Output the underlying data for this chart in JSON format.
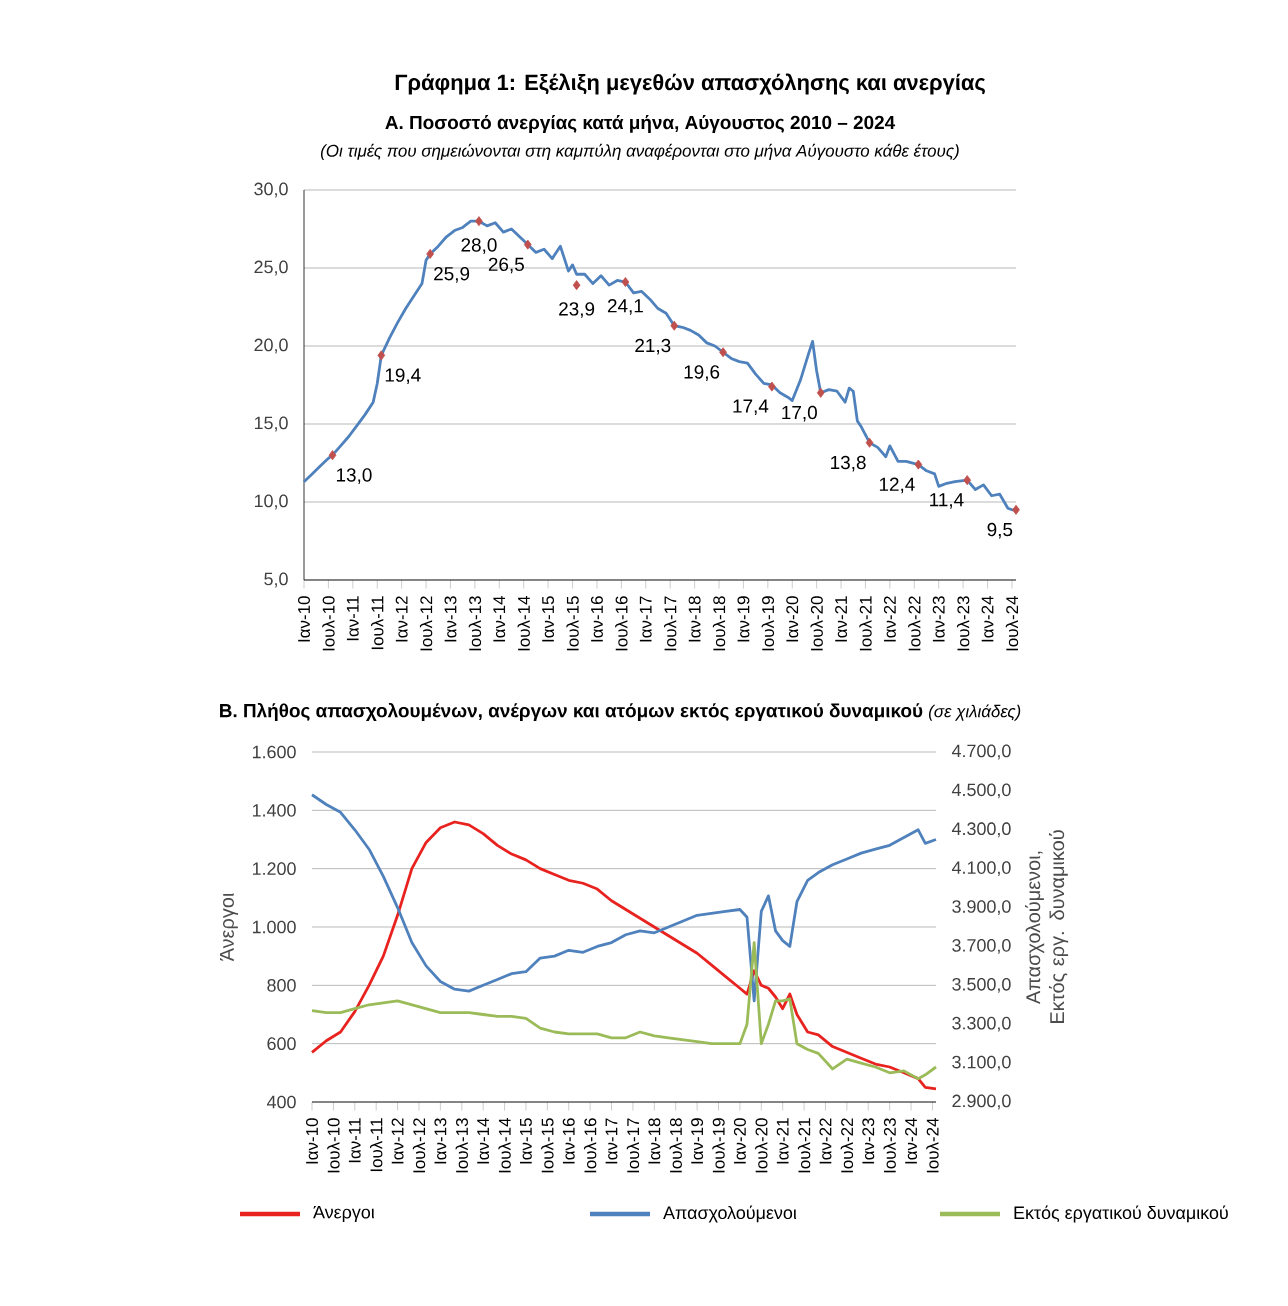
{
  "chart_data": [
    {
      "type": "line",
      "title": "Γράφημα 1: Εξέλιξη μεγεθών απασχόλησης και ανεργίας",
      "subtitle": "Α. Ποσοστό ανεργίας κατά μήνα, Αύγουστος 2010 – 2024",
      "annotations": [
        "(Οι τιμές που σημειώνονται στη καμπύλη αναφέρονται στο μήνα Αύγουστο κάθε έτους)"
      ],
      "xlim": [
        "2010-01",
        "2024-08"
      ],
      "xticks": [
        {
          "value": "2010-01",
          "label": "Ιαν-10"
        },
        {
          "value": "2010-07",
          "label": "Ιουλ-10"
        },
        {
          "value": "2011-01",
          "label": "Ιαν-11"
        },
        {
          "value": "2011-07",
          "label": "Ιουλ-11"
        },
        {
          "value": "2012-01",
          "label": "Ιαν-12"
        },
        {
          "value": "2012-07",
          "label": "Ιουλ-12"
        },
        {
          "value": "2013-01",
          "label": "Ιαν-13"
        },
        {
          "value": "2013-07",
          "label": "Ιουλ-13"
        },
        {
          "value": "2014-01",
          "label": "Ιαν-14"
        },
        {
          "value": "2014-07",
          "label": "Ιουλ-14"
        },
        {
          "value": "2015-01",
          "label": "Ιαν-15"
        },
        {
          "value": "2015-07",
          "label": "Ιουλ-15"
        },
        {
          "value": "2016-01",
          "label": "Ιαν-16"
        },
        {
          "value": "2016-07",
          "label": "Ιουλ-16"
        },
        {
          "value": "2017-01",
          "label": "Ιαν-17"
        },
        {
          "value": "2017-07",
          "label": "Ιουλ-17"
        },
        {
          "value": "2018-01",
          "label": "Ιαν-18"
        },
        {
          "value": "2018-07",
          "label": "Ιουλ-18"
        },
        {
          "value": "2019-01",
          "label": "Ιαν-19"
        },
        {
          "value": "2019-07",
          "label": "Ιουλ-19"
        },
        {
          "value": "2020-01",
          "label": "Ιαν-20"
        },
        {
          "value": "2020-07",
          "label": "Ιουλ-20"
        },
        {
          "value": "2021-01",
          "label": "Ιαν-21"
        },
        {
          "value": "2021-07",
          "label": "Ιουλ-21"
        },
        {
          "value": "2022-01",
          "label": "Ιαν-22"
        },
        {
          "value": "2022-07",
          "label": "Ιουλ-22"
        },
        {
          "value": "2023-01",
          "label": "Ιαν-23"
        },
        {
          "value": "2023-07",
          "label": "Ιουλ-23"
        },
        {
          "value": "2024-01",
          "label": "Ιαν-24"
        },
        {
          "value": "2024-07",
          "label": "Ιουλ-24"
        }
      ],
      "ylim": [
        5,
        30
      ],
      "yticks": [
        {
          "value": 5,
          "label": "5,0"
        },
        {
          "value": 10,
          "label": "10,0"
        },
        {
          "value": 15,
          "label": "15,0"
        },
        {
          "value": 20,
          "label": "20,0"
        },
        {
          "value": 25,
          "label": "25,0"
        },
        {
          "value": 30,
          "label": "30,0"
        }
      ],
      "grid": "y",
      "series": [
        {
          "color": "#4f81bd",
          "x": [
            "2010-01",
            "2010-03",
            "2010-05",
            "2010-07",
            "2010-08",
            "2010-10",
            "2010-12",
            "2011-02",
            "2011-04",
            "2011-06",
            "2011-07",
            "2011-08",
            "2011-10",
            "2011-12",
            "2012-02",
            "2012-04",
            "2012-06",
            "2012-07",
            "2012-08",
            "2012-10",
            "2012-12",
            "2013-02",
            "2013-04",
            "2013-06",
            "2013-08",
            "2013-10",
            "2013-12",
            "2014-02",
            "2014-04",
            "2014-06",
            "2014-08",
            "2014-10",
            "2014-12",
            "2015-02",
            "2015-04",
            "2015-06",
            "2015-07",
            "2015-08",
            "2015-10",
            "2015-12",
            "2016-02",
            "2016-04",
            "2016-06",
            "2016-08",
            "2016-10",
            "2016-12",
            "2017-02",
            "2017-04",
            "2017-06",
            "2017-08",
            "2017-10",
            "2017-12",
            "2018-02",
            "2018-04",
            "2018-06",
            "2018-08",
            "2018-10",
            "2018-12",
            "2019-02",
            "2019-04",
            "2019-06",
            "2019-08",
            "2019-10",
            "2019-12",
            "2020-01",
            "2020-03",
            "2020-05",
            "2020-06",
            "2020-07",
            "2020-08",
            "2020-10",
            "2020-12",
            "2021-02",
            "2021-03",
            "2021-04",
            "2021-05",
            "2021-06",
            "2021-08",
            "2021-10",
            "2021-12",
            "2022-01",
            "2022-03",
            "2022-05",
            "2022-08",
            "2022-10",
            "2022-12",
            "2023-01",
            "2023-03",
            "2023-05",
            "2023-08",
            "2023-10",
            "2023-12",
            "2024-02",
            "2024-04",
            "2024-06",
            "2024-07",
            "2024-08"
          ],
          "values": [
            11.3,
            11.8,
            12.3,
            12.8,
            13.0,
            13.6,
            14.2,
            14.9,
            15.6,
            16.4,
            17.6,
            19.4,
            20.5,
            21.5,
            22.4,
            23.2,
            24.0,
            25.5,
            25.9,
            26.4,
            27.0,
            27.4,
            27.6,
            28.0,
            28.0,
            27.7,
            27.9,
            27.3,
            27.5,
            27.0,
            26.5,
            26.0,
            26.2,
            25.6,
            26.4,
            24.8,
            25.2,
            24.6,
            24.6,
            24.0,
            24.5,
            23.9,
            24.2,
            24.1,
            23.4,
            23.5,
            23.0,
            22.4,
            22.1,
            21.3,
            21.2,
            21.0,
            20.7,
            20.2,
            20.0,
            19.6,
            19.2,
            19.0,
            18.9,
            18.2,
            17.6,
            17.5,
            17.0,
            16.7,
            16.5,
            17.8,
            19.5,
            20.3,
            18.4,
            17.0,
            17.2,
            17.1,
            16.4,
            17.3,
            17.1,
            15.2,
            14.8,
            13.8,
            13.5,
            12.9,
            13.6,
            12.6,
            12.6,
            12.4,
            12.0,
            11.8,
            11.0,
            11.2,
            11.3,
            11.4,
            10.8,
            11.1,
            10.4,
            10.5,
            9.6,
            9.5,
            9.5
          ]
        },
        {
          "type": "scatter",
          "color": "#c0504d",
          "marker": "diamond",
          "x": [
            "2010-08",
            "2011-08",
            "2012-08",
            "2013-08",
            "2014-08",
            "2015-08",
            "2016-08",
            "2017-08",
            "2018-08",
            "2019-08",
            "2020-08",
            "2021-08",
            "2022-08",
            "2023-08",
            "2024-08"
          ],
          "values": [
            13.0,
            19.4,
            25.9,
            28.0,
            26.5,
            23.9,
            24.1,
            21.3,
            19.6,
            17.4,
            17.0,
            13.8,
            12.4,
            11.4,
            9.5
          ],
          "value_labels": [
            "13,0",
            "19,4",
            "25,9",
            "28,0",
            "26,5",
            "23,9",
            "24,1",
            "21,3",
            "19,6",
            "17,4",
            "17,0",
            "13,8",
            "12,4",
            "11,4",
            "9,5"
          ]
        }
      ]
    },
    {
      "type": "line",
      "title": "Β. Πλήθος απασχολουμένων, ανέργων και ατόμων εκτός εργατικού δυναμικού",
      "subtitle": "(σε χιλιάδες)",
      "ylabel": "Άνεργοι",
      "y2label": "Απασχολούμενοι, Εκτός εργ. δυναμικού",
      "xlim": [
        "2010-01",
        "2024-08"
      ],
      "xticks": [
        {
          "value": "2010-01",
          "label": "Ιαν-10"
        },
        {
          "value": "2010-07",
          "label": "Ιουλ-10"
        },
        {
          "value": "2011-01",
          "label": "Ιαν-11"
        },
        {
          "value": "2011-07",
          "label": "Ιουλ-11"
        },
        {
          "value": "2012-01",
          "label": "Ιαν-12"
        },
        {
          "value": "2012-07",
          "label": "Ιουλ-12"
        },
        {
          "value": "2013-01",
          "label": "Ιαν-13"
        },
        {
          "value": "2013-07",
          "label": "Ιουλ-13"
        },
        {
          "value": "2014-01",
          "label": "Ιαν-14"
        },
        {
          "value": "2014-07",
          "label": "Ιουλ-14"
        },
        {
          "value": "2015-01",
          "label": "Ιαν-15"
        },
        {
          "value": "2015-07",
          "label": "Ιουλ-15"
        },
        {
          "value": "2016-01",
          "label": "Ιαν-16"
        },
        {
          "value": "2016-07",
          "label": "Ιουλ-16"
        },
        {
          "value": "2017-01",
          "label": "Ιαν-17"
        },
        {
          "value": "2017-07",
          "label": "Ιουλ-17"
        },
        {
          "value": "2018-01",
          "label": "Ιαν-18"
        },
        {
          "value": "2018-07",
          "label": "Ιουλ-18"
        },
        {
          "value": "2019-01",
          "label": "Ιαν-19"
        },
        {
          "value": "2019-07",
          "label": "Ιουλ-19"
        },
        {
          "value": "2020-01",
          "label": "Ιαν-20"
        },
        {
          "value": "2020-07",
          "label": "Ιουλ-20"
        },
        {
          "value": "2021-01",
          "label": "Ιαν-21"
        },
        {
          "value": "2021-07",
          "label": "Ιουλ-21"
        },
        {
          "value": "2022-01",
          "label": "Ιαν-22"
        },
        {
          "value": "2022-07",
          "label": "Ιουλ-22"
        },
        {
          "value": "2023-01",
          "label": "Ιαν-23"
        },
        {
          "value": "2023-07",
          "label": "Ιουλ-23"
        },
        {
          "value": "2024-01",
          "label": "Ιαν-24"
        },
        {
          "value": "2024-07",
          "label": "Ιουλ-24"
        }
      ],
      "ylim": [
        400,
        1600
      ],
      "yticks": [
        400,
        600,
        800,
        {
          "value": 1000,
          "label": "1.000"
        },
        {
          "value": 1200,
          "label": "1.200"
        },
        {
          "value": 1400,
          "label": "1.400"
        },
        {
          "value": 1600,
          "label": "1.600"
        }
      ],
      "y2lim": [
        2900,
        4700
      ],
      "y2ticks": [
        {
          "value": 2900,
          "label": "2.900,0"
        },
        {
          "value": 3100,
          "label": "3.100,0"
        },
        {
          "value": 3300,
          "label": "3.300,0"
        },
        {
          "value": 3500,
          "label": "3.500,0"
        },
        {
          "value": 3700,
          "label": "3.700,0"
        },
        {
          "value": 3900,
          "label": "3.900,0"
        },
        {
          "value": 4100,
          "label": "4.100,0"
        },
        {
          "value": 4300,
          "label": "4.300,0"
        },
        {
          "value": 4500,
          "label": "4.500,0"
        },
        {
          "value": 4700,
          "label": "4.700,0"
        }
      ],
      "grid": "y",
      "legend": "bottom",
      "x": [
        "2010-01",
        "2010-05",
        "2010-09",
        "2011-01",
        "2011-05",
        "2011-09",
        "2012-01",
        "2012-05",
        "2012-09",
        "2013-01",
        "2013-05",
        "2013-09",
        "2014-01",
        "2014-05",
        "2014-09",
        "2015-01",
        "2015-05",
        "2015-09",
        "2016-01",
        "2016-05",
        "2016-09",
        "2017-01",
        "2017-05",
        "2017-09",
        "2018-01",
        "2018-05",
        "2018-09",
        "2019-01",
        "2019-05",
        "2019-09",
        "2020-01",
        "2020-03",
        "2020-05",
        "2020-07",
        "2020-09",
        "2020-11",
        "2021-01",
        "2021-03",
        "2021-05",
        "2021-08",
        "2021-11",
        "2022-03",
        "2022-07",
        "2022-11",
        "2023-03",
        "2023-07",
        "2023-11",
        "2024-03",
        "2024-05",
        "2024-08"
      ],
      "series": [
        {
          "name": "Άνεργοι",
          "color": "#e8231f",
          "values": [
            570,
            610,
            640,
            710,
            800,
            900,
            1040,
            1200,
            1290,
            1340,
            1360,
            1350,
            1320,
            1280,
            1250,
            1230,
            1200,
            1180,
            1160,
            1150,
            1130,
            1090,
            1060,
            1030,
            1000,
            970,
            940,
            910,
            870,
            830,
            790,
            770,
            850,
            800,
            790,
            760,
            720,
            770,
            700,
            640,
            630,
            590,
            570,
            550,
            530,
            520,
            500,
            480,
            450,
            445
          ]
        },
        {
          "name": "Απασχολούμενοι",
          "color": "#4f81bd",
          "axis": "y2",
          "values": [
            4480,
            4430,
            4390,
            4300,
            4200,
            4060,
            3900,
            3720,
            3600,
            3520,
            3480,
            3470,
            3500,
            3530,
            3560,
            3570,
            3640,
            3650,
            3680,
            3670,
            3700,
            3720,
            3760,
            3780,
            3770,
            3800,
            3830,
            3860,
            3870,
            3880,
            3890,
            3850,
            3420,
            3880,
            3960,
            3780,
            3730,
            3700,
            3930,
            4040,
            4080,
            4120,
            4150,
            4180,
            4200,
            4220,
            4260,
            4300,
            4230,
            4250
          ]
        },
        {
          "name": "Εκτός εργατικού δυναμικού",
          "color": "#9bbb59",
          "axis": "y2",
          "values": [
            3370,
            3360,
            3360,
            3380,
            3400,
            3410,
            3420,
            3400,
            3380,
            3360,
            3360,
            3360,
            3350,
            3340,
            3340,
            3330,
            3280,
            3260,
            3250,
            3250,
            3250,
            3230,
            3230,
            3260,
            3240,
            3230,
            3220,
            3210,
            3200,
            3200,
            3200,
            3300,
            3720,
            3200,
            3300,
            3420,
            3420,
            3430,
            3200,
            3170,
            3150,
            3070,
            3120,
            3100,
            3080,
            3050,
            3060,
            3020,
            3040,
            3080
          ]
        }
      ]
    }
  ]
}
